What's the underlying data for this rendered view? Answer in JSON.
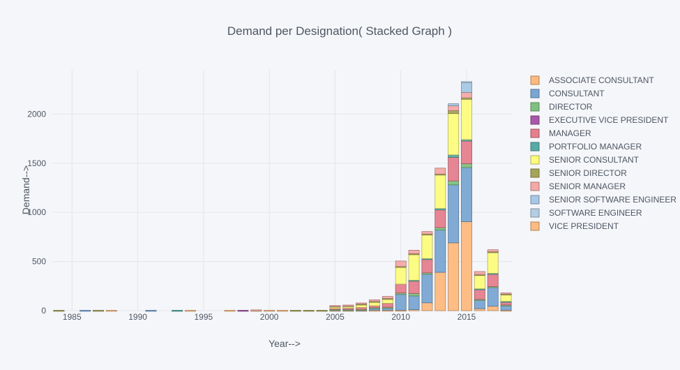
{
  "chart_data": {
    "type": "bar",
    "stacked": true,
    "title": "Demand per Designation( Stacked Graph )",
    "xlabel": "Year-->",
    "ylabel": "Demand-->",
    "xlim": [
      1983.5,
      2018.5
    ],
    "ylim": [
      0,
      2450
    ],
    "x_ticks": [
      1985,
      1990,
      1995,
      2000,
      2005,
      2010,
      2015
    ],
    "y_ticks": [
      0,
      500,
      1000,
      1500,
      2000
    ],
    "y_tick_labels": [
      "0",
      "500",
      "1000",
      "1500",
      "2000"
    ],
    "grid": true,
    "legend_position": "right",
    "years": [
      1984,
      1985,
      1986,
      1987,
      1988,
      1989,
      1990,
      1991,
      1992,
      1993,
      1994,
      1995,
      1996,
      1997,
      1998,
      1999,
      2000,
      2001,
      2002,
      2003,
      2004,
      2005,
      2006,
      2007,
      2008,
      2009,
      2010,
      2011,
      2012,
      2013,
      2014,
      2015,
      2016,
      2017,
      2018
    ],
    "series": [
      {
        "name": "ASSOCIATE CONSULTANT",
        "color": "#fdb97e",
        "values": [
          0,
          0,
          0,
          0,
          0,
          0,
          0,
          0,
          0,
          0,
          0,
          0,
          0,
          0,
          0,
          0,
          0,
          0,
          0,
          0,
          0,
          5,
          5,
          5,
          5,
          5,
          5,
          10,
          80,
          390,
          690,
          905,
          20,
          45,
          5
        ]
      },
      {
        "name": "CONSULTANT",
        "color": "#7aa6d2",
        "values": [
          0,
          0,
          4,
          0,
          0,
          0,
          0,
          4,
          0,
          0,
          0,
          0,
          0,
          0,
          0,
          0,
          0,
          0,
          0,
          0,
          0,
          5,
          5,
          5,
          20,
          25,
          160,
          140,
          290,
          430,
          590,
          550,
          90,
          190,
          50
        ]
      },
      {
        "name": "DIRECTOR",
        "color": "#7fc080",
        "values": [
          0,
          0,
          0,
          0,
          0,
          0,
          0,
          0,
          0,
          0,
          0,
          0,
          0,
          0,
          0,
          0,
          0,
          0,
          0,
          0,
          0,
          2,
          2,
          3,
          5,
          5,
          15,
          25,
          15,
          25,
          40,
          40,
          5,
          10,
          3
        ]
      },
      {
        "name": "EXECUTIVE VICE PRESIDENT",
        "color": "#a957a9",
        "values": [
          0,
          0,
          0,
          0,
          0,
          0,
          0,
          0,
          0,
          0,
          0,
          0,
          0,
          0,
          4,
          0,
          0,
          0,
          0,
          0,
          0,
          0,
          0,
          0,
          0,
          0,
          0,
          0,
          0,
          0,
          0,
          0,
          0,
          0,
          0
        ]
      },
      {
        "name": "MANAGER",
        "color": "#e57e8d",
        "values": [
          0,
          0,
          0,
          0,
          0,
          0,
          0,
          0,
          0,
          0,
          0,
          0,
          0,
          0,
          0,
          0,
          0,
          0,
          0,
          0,
          0,
          10,
          15,
          20,
          20,
          40,
          90,
          130,
          140,
          180,
          240,
          230,
          105,
          130,
          35
        ]
      },
      {
        "name": "PORTFOLIO MANAGER",
        "color": "#56aba6",
        "values": [
          0,
          0,
          0,
          0,
          0,
          0,
          0,
          0,
          0,
          4,
          0,
          0,
          0,
          0,
          0,
          0,
          0,
          0,
          0,
          0,
          0,
          0,
          0,
          0,
          0,
          0,
          0,
          5,
          5,
          15,
          25,
          15,
          3,
          5,
          2
        ]
      },
      {
        "name": "SENIOR CONSULTANT",
        "color": "#fcfc7e",
        "values": [
          0,
          0,
          0,
          0,
          0,
          0,
          0,
          0,
          0,
          0,
          0,
          0,
          0,
          0,
          0,
          4,
          0,
          0,
          0,
          0,
          0,
          15,
          15,
          25,
          35,
          40,
          170,
          260,
          240,
          340,
          420,
          410,
          140,
          215,
          70
        ]
      },
      {
        "name": "SENIOR DIRECTOR",
        "color": "#a6a458",
        "values": [
          4,
          0,
          0,
          4,
          0,
          0,
          0,
          0,
          0,
          0,
          0,
          0,
          0,
          0,
          0,
          0,
          0,
          0,
          4,
          4,
          4,
          10,
          10,
          10,
          10,
          10,
          10,
          10,
          10,
          10,
          30,
          15,
          5,
          5,
          5
        ]
      },
      {
        "name": "SENIOR MANAGER",
        "color": "#f4a9a7",
        "values": [
          0,
          0,
          0,
          0,
          0,
          0,
          0,
          0,
          0,
          0,
          0,
          0,
          0,
          0,
          0,
          4,
          0,
          0,
          0,
          0,
          0,
          5,
          5,
          10,
          15,
          20,
          55,
          35,
          25,
          60,
          50,
          55,
          30,
          20,
          10
        ]
      },
      {
        "name": "SENIOR SOFTWARE ENGINEER",
        "color": "#a7c7e4",
        "values": [
          0,
          0,
          0,
          0,
          0,
          0,
          0,
          0,
          0,
          0,
          0,
          0,
          0,
          0,
          0,
          0,
          0,
          0,
          0,
          0,
          0,
          0,
          0,
          0,
          0,
          0,
          0,
          0,
          0,
          0,
          20,
          100,
          0,
          0,
          0
        ]
      },
      {
        "name": "SOFTWARE ENGINEER",
        "color": "#b4cde4",
        "values": [
          0,
          0,
          0,
          0,
          0,
          0,
          0,
          0,
          0,
          0,
          0,
          0,
          0,
          0,
          0,
          0,
          0,
          0,
          0,
          0,
          0,
          0,
          0,
          0,
          0,
          0,
          0,
          0,
          0,
          0,
          0,
          10,
          0,
          0,
          0
        ]
      },
      {
        "name": "VICE PRESIDENT",
        "color": "#fcbb82",
        "values": [
          0,
          0,
          0,
          0,
          4,
          0,
          0,
          0,
          0,
          0,
          4,
          0,
          0,
          4,
          0,
          0,
          4,
          4,
          0,
          0,
          0,
          0,
          0,
          0,
          0,
          0,
          0,
          0,
          0,
          0,
          0,
          0,
          0,
          0,
          0
        ]
      }
    ]
  }
}
